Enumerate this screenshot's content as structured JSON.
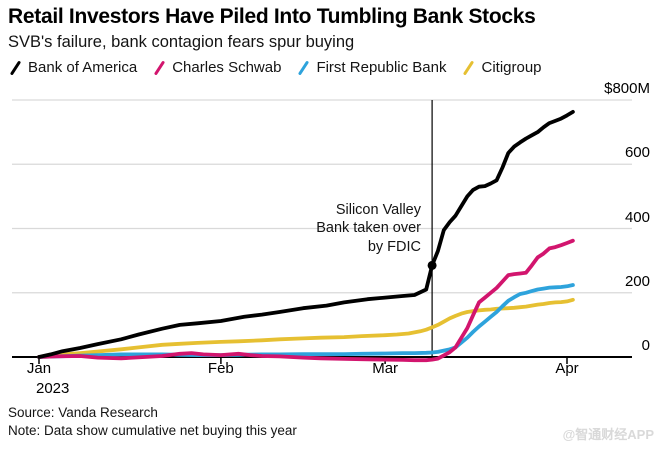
{
  "header": {
    "title": "Retail Investors Have Piled Into Tumbling Bank Stocks",
    "subtitle": "SVB's failure, bank contagion fears spur buying"
  },
  "chart_data": {
    "type": "line",
    "title": "Retail Investors Have Piled Into Tumbling Bank Stocks",
    "subtitle": "SVB's failure, bank contagion fears spur buying",
    "value_unit": "$M",
    "ylim": [
      0,
      800
    ],
    "grid": true,
    "legend_position": "top",
    "x_year_label": "2023",
    "y_ticks": [
      {
        "label": "$800M",
        "value": 800
      },
      {
        "label": "600",
        "value": 600
      },
      {
        "label": "400",
        "value": 400
      },
      {
        "label": "200",
        "value": 200
      },
      {
        "label": "0",
        "value": 0
      }
    ],
    "x_ticks": [
      {
        "label": "Jan",
        "day": 0
      },
      {
        "label": "Feb",
        "day": 31
      },
      {
        "label": "Mar",
        "day": 59
      },
      {
        "label": "Apr",
        "day": 90
      }
    ],
    "annotation": {
      "text": "Silicon Valley\nBank taken over\nby FDIC",
      "event_day": 67,
      "marker_value": 285
    },
    "series": [
      {
        "name": "Bank of America",
        "color": "#000000",
        "points": [
          [
            0,
            0
          ],
          [
            2,
            8
          ],
          [
            4,
            18
          ],
          [
            7,
            28
          ],
          [
            10,
            40
          ],
          [
            14,
            55
          ],
          [
            17,
            70
          ],
          [
            21,
            88
          ],
          [
            24,
            100
          ],
          [
            27,
            105
          ],
          [
            31,
            112
          ],
          [
            35,
            125
          ],
          [
            38,
            132
          ],
          [
            41,
            140
          ],
          [
            45,
            152
          ],
          [
            49,
            160
          ],
          [
            52,
            170
          ],
          [
            56,
            180
          ],
          [
            59,
            185
          ],
          [
            62,
            190
          ],
          [
            64,
            193
          ],
          [
            66,
            210
          ],
          [
            67,
            285
          ],
          [
            68,
            330
          ],
          [
            69,
            395
          ],
          [
            70,
            420
          ],
          [
            71,
            440
          ],
          [
            72,
            470
          ],
          [
            73,
            500
          ],
          [
            74,
            520
          ],
          [
            75,
            530
          ],
          [
            76,
            532
          ],
          [
            77,
            540
          ],
          [
            78,
            550
          ],
          [
            79,
            590
          ],
          [
            80,
            635
          ],
          [
            81,
            655
          ],
          [
            82,
            668
          ],
          [
            83,
            680
          ],
          [
            84,
            690
          ],
          [
            85,
            700
          ],
          [
            86,
            715
          ],
          [
            87,
            728
          ],
          [
            88,
            735
          ],
          [
            89,
            742
          ],
          [
            90,
            752
          ],
          [
            91,
            763
          ]
        ]
      },
      {
        "name": "Charles Schwab",
        "color": "#d2156e",
        "points": [
          [
            0,
            0
          ],
          [
            3,
            2
          ],
          [
            7,
            3
          ],
          [
            10,
            -2
          ],
          [
            14,
            -4
          ],
          [
            18,
            0
          ],
          [
            21,
            3
          ],
          [
            24,
            10
          ],
          [
            26,
            12
          ],
          [
            28,
            8
          ],
          [
            31,
            6
          ],
          [
            34,
            10
          ],
          [
            36,
            6
          ],
          [
            38,
            3
          ],
          [
            41,
            2
          ],
          [
            45,
            -2
          ],
          [
            48,
            -4
          ],
          [
            52,
            -6
          ],
          [
            55,
            -7
          ],
          [
            59,
            -8
          ],
          [
            62,
            -9
          ],
          [
            64,
            -10
          ],
          [
            66,
            -10
          ],
          [
            67,
            -8
          ],
          [
            68,
            -5
          ],
          [
            69,
            5
          ],
          [
            70,
            15
          ],
          [
            71,
            30
          ],
          [
            72,
            60
          ],
          [
            73,
            90
          ],
          [
            74,
            130
          ],
          [
            75,
            170
          ],
          [
            76,
            185
          ],
          [
            77,
            200
          ],
          [
            78,
            215
          ],
          [
            79,
            235
          ],
          [
            80,
            255
          ],
          [
            81,
            258
          ],
          [
            82,
            260
          ],
          [
            83,
            262
          ],
          [
            84,
            285
          ],
          [
            85,
            310
          ],
          [
            86,
            322
          ],
          [
            87,
            338
          ],
          [
            88,
            342
          ],
          [
            89,
            348
          ],
          [
            90,
            355
          ],
          [
            91,
            362
          ]
        ]
      },
      {
        "name": "First Republic Bank",
        "color": "#2ea3dc",
        "points": [
          [
            0,
            0
          ],
          [
            3,
            2
          ],
          [
            7,
            4
          ],
          [
            10,
            6
          ],
          [
            14,
            8
          ],
          [
            17,
            8
          ],
          [
            21,
            8
          ],
          [
            24,
            7
          ],
          [
            27,
            6
          ],
          [
            31,
            6
          ],
          [
            34,
            7
          ],
          [
            38,
            8
          ],
          [
            41,
            8
          ],
          [
            45,
            9
          ],
          [
            48,
            9
          ],
          [
            52,
            9
          ],
          [
            55,
            10
          ],
          [
            59,
            11
          ],
          [
            62,
            12
          ],
          [
            64,
            12
          ],
          [
            66,
            13
          ],
          [
            67,
            14
          ],
          [
            68,
            16
          ],
          [
            69,
            20
          ],
          [
            70,
            24
          ],
          [
            71,
            30
          ],
          [
            72,
            45
          ],
          [
            73,
            60
          ],
          [
            74,
            78
          ],
          [
            75,
            95
          ],
          [
            76,
            110
          ],
          [
            77,
            125
          ],
          [
            78,
            140
          ],
          [
            79,
            158
          ],
          [
            80,
            175
          ],
          [
            81,
            186
          ],
          [
            82,
            196
          ],
          [
            83,
            200
          ],
          [
            84,
            205
          ],
          [
            85,
            210
          ],
          [
            86,
            213
          ],
          [
            87,
            216
          ],
          [
            88,
            217
          ],
          [
            89,
            218
          ],
          [
            90,
            220
          ],
          [
            91,
            224
          ]
        ]
      },
      {
        "name": "Citigroup",
        "color": "#e6c032",
        "points": [
          [
            0,
            0
          ],
          [
            2,
            4
          ],
          [
            4,
            8
          ],
          [
            7,
            12
          ],
          [
            10,
            17
          ],
          [
            14,
            24
          ],
          [
            17,
            30
          ],
          [
            21,
            38
          ],
          [
            24,
            41
          ],
          [
            27,
            44
          ],
          [
            31,
            47
          ],
          [
            34,
            49
          ],
          [
            38,
            52
          ],
          [
            41,
            55
          ],
          [
            45,
            58
          ],
          [
            48,
            60
          ],
          [
            52,
            62
          ],
          [
            55,
            65
          ],
          [
            59,
            68
          ],
          [
            61,
            70
          ],
          [
            63,
            73
          ],
          [
            65,
            80
          ],
          [
            66,
            85
          ],
          [
            67,
            92
          ],
          [
            68,
            100
          ],
          [
            69,
            110
          ],
          [
            70,
            120
          ],
          [
            71,
            128
          ],
          [
            72,
            135
          ],
          [
            73,
            140
          ],
          [
            74,
            143
          ],
          [
            75,
            145
          ],
          [
            76,
            147
          ],
          [
            77,
            148
          ],
          [
            78,
            150
          ],
          [
            79,
            151
          ],
          [
            80,
            152
          ],
          [
            81,
            153
          ],
          [
            82,
            155
          ],
          [
            83,
            157
          ],
          [
            84,
            160
          ],
          [
            85,
            163
          ],
          [
            86,
            165
          ],
          [
            87,
            168
          ],
          [
            88,
            170
          ],
          [
            89,
            171
          ],
          [
            90,
            173
          ],
          [
            91,
            178
          ]
        ]
      }
    ]
  },
  "footer": {
    "source": "Source: Vanda Research",
    "note": "Note: Data show cumulative net buying this year",
    "watermark": "@智通财经APP"
  }
}
